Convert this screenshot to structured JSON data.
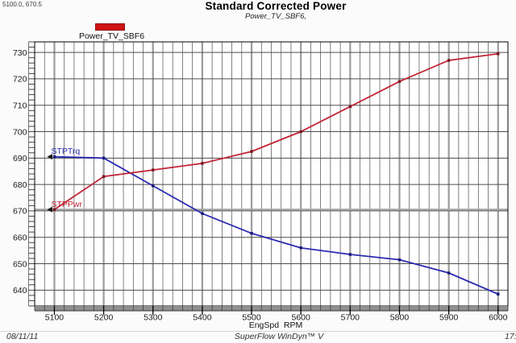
{
  "cursor_readout": "5100.0, 670.5",
  "title": "Standard Corrected Power",
  "subtitle": "Power_TV_SBF6,",
  "legend": {
    "label": "Power_TV_SBF6",
    "swatch_color": "#d01212"
  },
  "footer": {
    "date": "08/11/11",
    "app": "SuperFlow WinDyn™ V",
    "time": "17:"
  },
  "chart_data": {
    "type": "line",
    "x": [
      5100,
      5200,
      5300,
      5400,
      5500,
      5600,
      5700,
      5800,
      5900,
      6000
    ],
    "series": [
      {
        "name": "STPTrq",
        "color": "#2b2bb2",
        "marker_color": "#15157e",
        "values": [
          690.5,
          690.0,
          679.5,
          669.0,
          661.5,
          656.0,
          653.5,
          651.5,
          646.5,
          638.5
        ]
      },
      {
        "name": "STPPwr",
        "color": "#c22434",
        "marker_color": "#7c1020",
        "values": [
          670.5,
          683.0,
          685.5,
          688.0,
          692.5,
          700.0,
          709.5,
          719.0,
          727.0,
          729.5
        ]
      }
    ],
    "title": "Standard Corrected Power",
    "xlabel": "EngSpd  RPM",
    "ylabel": "",
    "xlim": [
      5060,
      6020
    ],
    "ylim": [
      634,
      734
    ],
    "x_ticks": [
      5100,
      5200,
      5300,
      5400,
      5500,
      5600,
      5700,
      5800,
      5900,
      6000
    ],
    "y_ticks": [
      640,
      650,
      660,
      670,
      680,
      690,
      700,
      710,
      720,
      730
    ],
    "x_minor_step": 20,
    "y_minor_step": 2,
    "grid": true,
    "legend_position": "top-left",
    "crosshair": {
      "x": 5100.0,
      "y": 670.5
    }
  }
}
